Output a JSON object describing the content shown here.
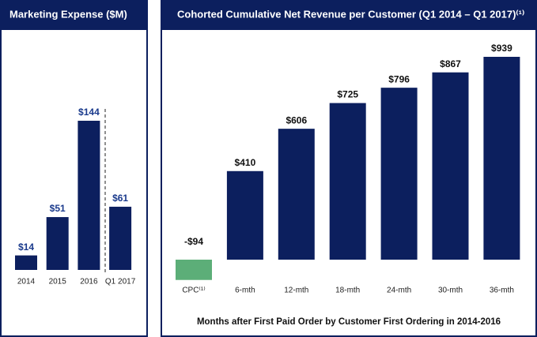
{
  "chart_data": [
    {
      "type": "bar",
      "title": "Marketing Expense ($M)",
      "categories": [
        "2014",
        "2015",
        "2016",
        "Q1 2017"
      ],
      "values": [
        14,
        51,
        144,
        61
      ],
      "value_labels": [
        "$14",
        "$51",
        "$144",
        "$61"
      ],
      "color": "#0c1f5e"
    },
    {
      "type": "bar",
      "title": "Cohorted Cumulative Net Revenue per Customer (Q1 2014 – Q1 2017)⁽¹⁾",
      "x_label": "Months after First Paid Order by Customer First Ordering in 2014-2016",
      "categories": [
        "CPC⁽¹⁾",
        "6-mth",
        "12-mth",
        "18-mth",
        "24-mth",
        "30-mth",
        "36-mth"
      ],
      "values": [
        -94,
        410,
        606,
        725,
        796,
        867,
        939
      ],
      "value_labels": [
        "-$94",
        "$410",
        "$606",
        "$725",
        "$796",
        "$867",
        "$939"
      ],
      "colors": [
        "#5cae78",
        "#0c1f5e",
        "#0c1f5e",
        "#0c1f5e",
        "#0c1f5e",
        "#0c1f5e",
        "#0c1f5e"
      ]
    }
  ]
}
